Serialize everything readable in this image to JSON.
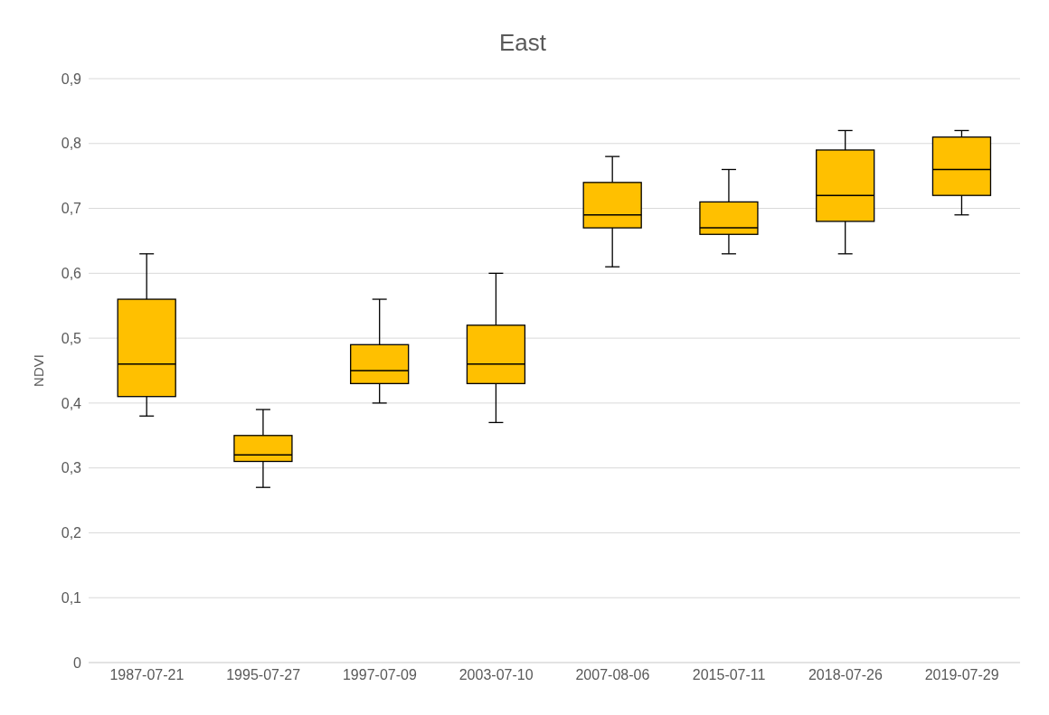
{
  "chart_data": {
    "type": "box",
    "title": "East",
    "ylabel": "NDVI",
    "color": "#ffc000",
    "categories": [
      "1987-07-21",
      "1995-07-27",
      "1997-07-09",
      "2003-07-10",
      "2007-08-06",
      "2015-07-11",
      "2018-07-26",
      "2019-07-29"
    ],
    "boxes": [
      {
        "low": 0.38,
        "q1": 0.41,
        "median": 0.46,
        "q3": 0.56,
        "high": 0.63
      },
      {
        "low": 0.27,
        "q1": 0.31,
        "median": 0.32,
        "q3": 0.35,
        "high": 0.39
      },
      {
        "low": 0.4,
        "q1": 0.43,
        "median": 0.45,
        "q3": 0.49,
        "high": 0.56
      },
      {
        "low": 0.37,
        "q1": 0.43,
        "median": 0.46,
        "q3": 0.52,
        "high": 0.6
      },
      {
        "low": 0.61,
        "q1": 0.67,
        "median": 0.69,
        "q3": 0.74,
        "high": 0.78
      },
      {
        "low": 0.63,
        "q1": 0.66,
        "median": 0.67,
        "q3": 0.71,
        "high": 0.76
      },
      {
        "low": 0.63,
        "q1": 0.68,
        "median": 0.72,
        "q3": 0.79,
        "high": 0.82
      },
      {
        "low": 0.69,
        "q1": 0.72,
        "median": 0.76,
        "q3": 0.81,
        "high": 0.82
      }
    ],
    "ylim": [
      0,
      0.9
    ],
    "yticks": [
      0,
      {
        "value": 0.1,
        "label": "0,1"
      },
      {
        "value": 0.2,
        "label": "0,2"
      },
      {
        "value": 0.3,
        "label": "0,3"
      },
      {
        "value": 0.4,
        "label": "0,4"
      },
      {
        "value": 0.5,
        "label": "0,5"
      },
      {
        "value": 0.6,
        "label": "0,6"
      },
      {
        "value": 0.7,
        "label": "0,7"
      },
      {
        "value": 0.8,
        "label": "0,8"
      },
      {
        "value": 0.9,
        "label": "0,9"
      }
    ],
    "grid": "y"
  }
}
